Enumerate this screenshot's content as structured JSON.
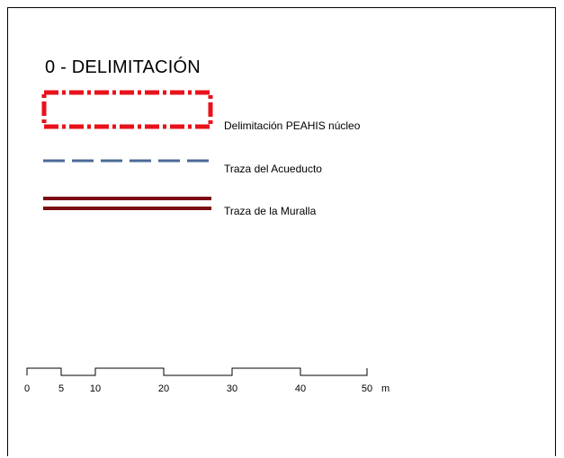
{
  "title": "0 - DELIMITACIÓN",
  "legend": [
    {
      "label": "Delimitación PEAHIS núcleo",
      "symbol": "red-dash-dot-rectangle",
      "color": "#e8121b"
    },
    {
      "label": "Traza del Acueducto",
      "symbol": "blue-dashed-line",
      "color": "#4a6a96"
    },
    {
      "label": "Traza de la Muralla",
      "symbol": "double-dark-red-line",
      "color": "#7b0c14"
    }
  ],
  "scale_bar": {
    "ticks": [
      "0",
      "5",
      "10",
      "20",
      "30",
      "40",
      "50"
    ],
    "unit": "m"
  }
}
